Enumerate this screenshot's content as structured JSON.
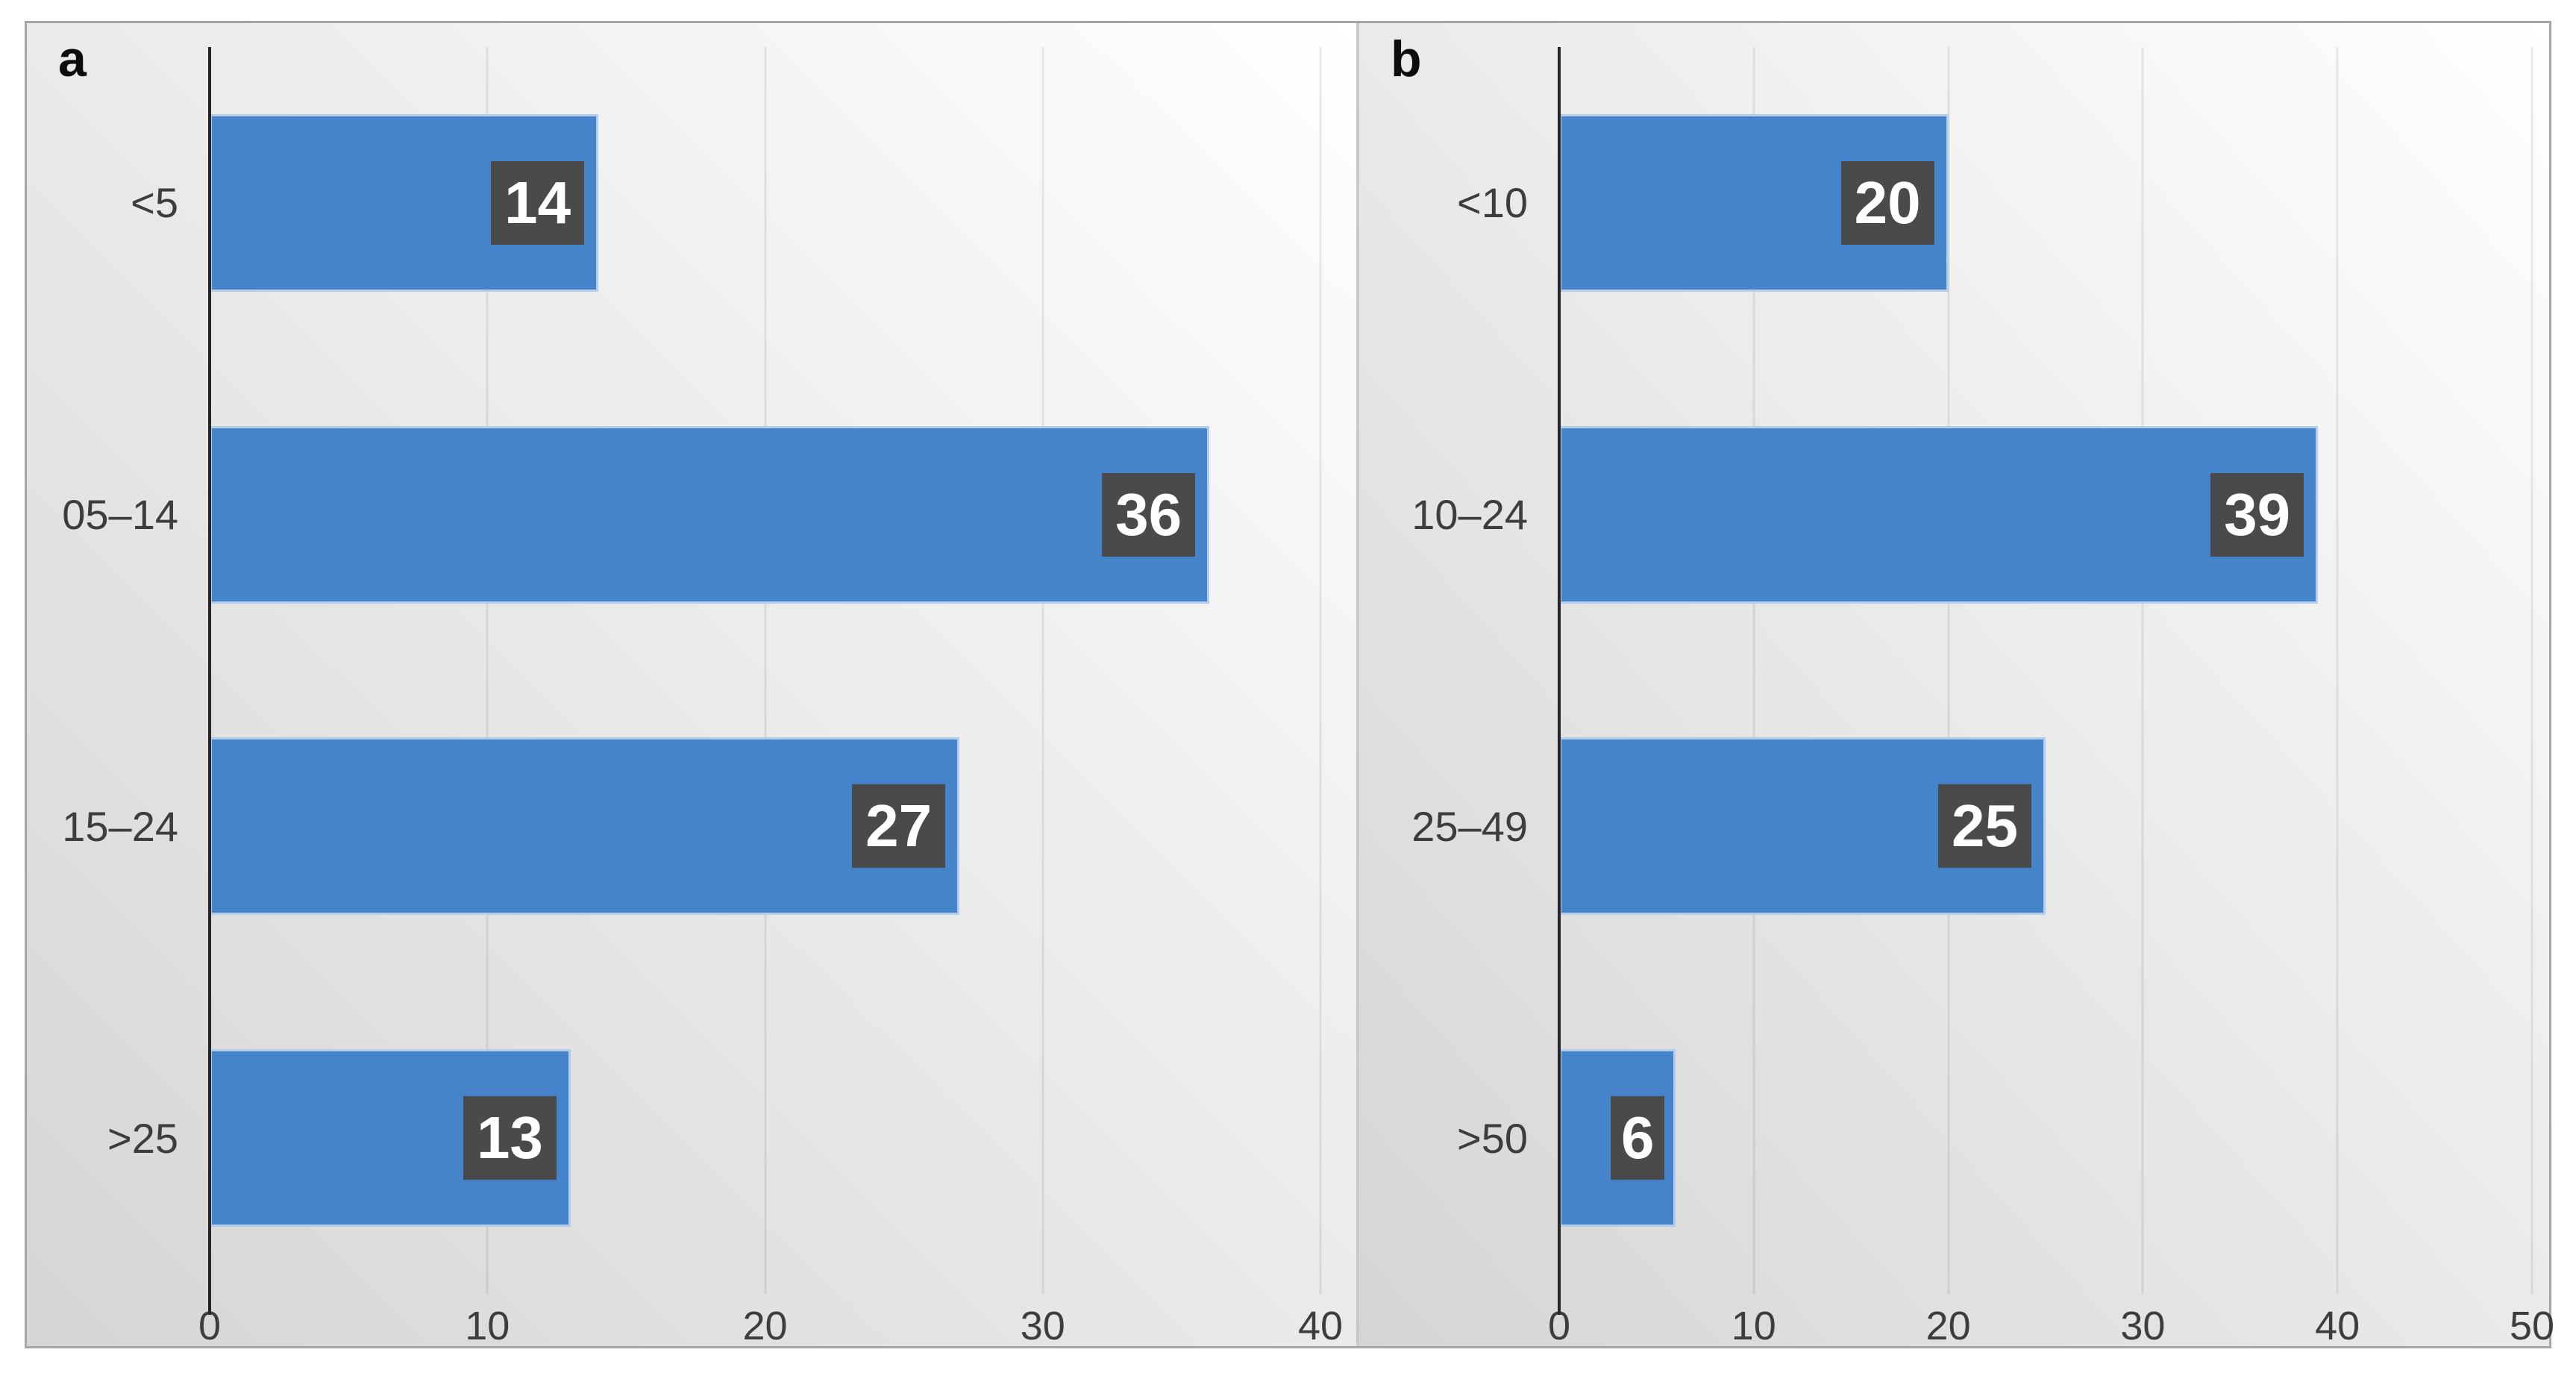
{
  "figure": {
    "background": "#ffffff",
    "frame_border_color": "#a6a6a6",
    "panel_divider_color": "#c9c9c9"
  },
  "colors": {
    "bar_fill": "#4583cb",
    "bar_border": "#b5cdeb",
    "data_label_box": "#4a4a4a",
    "data_label_text": "#ffffff",
    "axis_line": "#262626",
    "gridline": "rgba(0,0,0,0.08)",
    "tick_text": "#3d3d3d",
    "panel_letter_text": "#0d0d0d"
  },
  "chart_data": [
    {
      "type": "bar",
      "orientation": "horizontal",
      "panel_label": "a",
      "categories": [
        "<5",
        "05–14",
        "15–24",
        ">25"
      ],
      "values": [
        14,
        36,
        27,
        13
      ],
      "xticks": [
        0,
        10,
        20,
        30,
        40
      ],
      "xlim": [
        0,
        40
      ],
      "grid": true,
      "data_labels_position": "inside-end",
      "title": "",
      "xlabel": "",
      "ylabel": "",
      "legend": "none"
    },
    {
      "type": "bar",
      "orientation": "horizontal",
      "panel_label": "b",
      "categories": [
        "<10",
        "10–24",
        "25–49",
        ">50"
      ],
      "values": [
        20,
        39,
        25,
        6
      ],
      "xticks": [
        0,
        10,
        20,
        30,
        40,
        50
      ],
      "xlim": [
        0,
        50
      ],
      "grid": true,
      "data_labels_position": "inside-end",
      "title": "",
      "xlabel": "",
      "ylabel": "",
      "legend": "none"
    }
  ]
}
